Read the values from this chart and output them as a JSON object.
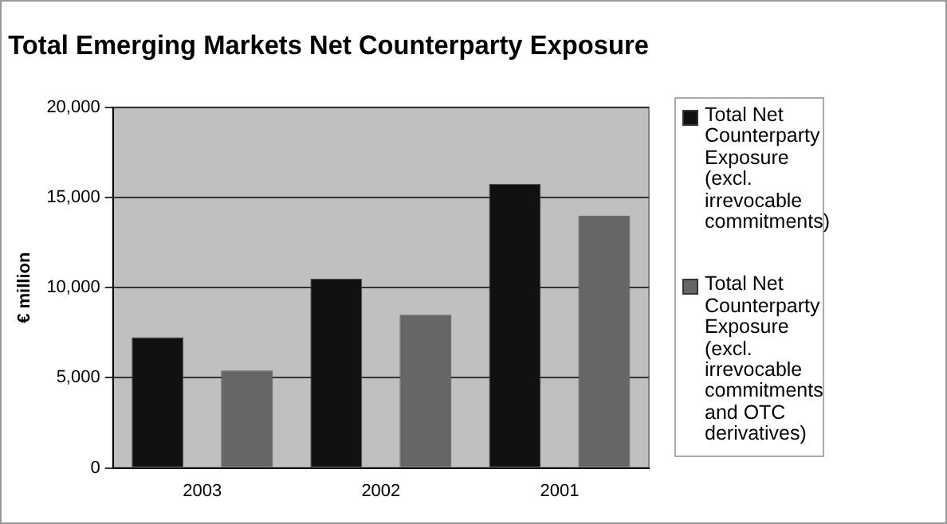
{
  "chart_data": {
    "type": "bar",
    "title": "Total Emerging Markets Net Counterparty Exposure",
    "ylabel": "€ million",
    "categories": [
      "2003",
      "2002",
      "2001"
    ],
    "series": [
      {
        "name": "Total Net Counterparty Exposure (excl. irrevocable commitments)",
        "color": "#111111",
        "values": [
          7250,
          10500,
          15750
        ]
      },
      {
        "name": "Total Net Counterparty Exposure (excl. irrevocable commitments and OTC derivatives)",
        "color": "#666666",
        "values": [
          5400,
          8500,
          14000
        ]
      }
    ],
    "ylim": [
      0,
      20000
    ],
    "yticks": [
      {
        "value": 0,
        "label": "0"
      },
      {
        "value": 5000,
        "label": "5,000"
      },
      {
        "value": 10000,
        "label": "10,000"
      },
      {
        "value": 15000,
        "label": "15,000"
      },
      {
        "value": 20000,
        "label": "20,000"
      }
    ],
    "grid": "y",
    "legend": "right"
  }
}
